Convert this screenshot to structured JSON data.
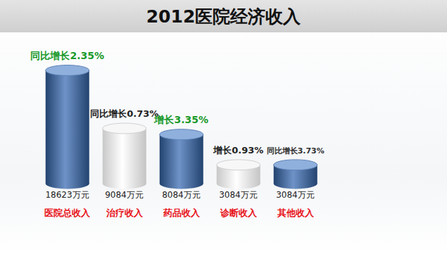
{
  "chart_data": {
    "type": "bar",
    "title": "2012医院经济收入",
    "categories": [
      "医院总收入",
      "治疗收入",
      "药品收入",
      "诊断收入",
      "其他收入"
    ],
    "values": [
      18623,
      9084,
      8084,
      3084,
      3084
    ],
    "value_labels": [
      "18623万元",
      "9084万元",
      "8084万元",
      "3084万元",
      "3084万元"
    ],
    "annotations": [
      "同比增长2.35%",
      "同比增长0.73%",
      "增长3.35%",
      "增长0.93%",
      "同比增长3.73%"
    ],
    "colors": [
      "#2f5597",
      "#e6e6e6",
      "#2f5597",
      "#e6e6e6",
      "#2f5597"
    ],
    "data_labels": true,
    "tick_labels": false,
    "grid": false
  }
}
